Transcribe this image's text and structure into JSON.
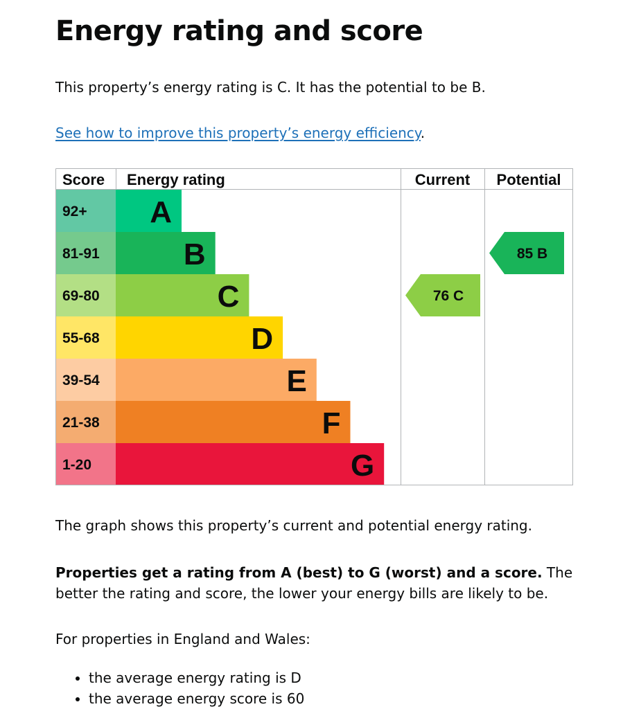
{
  "page": {
    "title": "Energy rating and score",
    "intro": "This property’s energy rating is C. It has the potential to be B.",
    "link_text": "See how to improve this property’s energy efficiency",
    "link_suffix": ".",
    "graph_description": "The graph shows this property’s current and potential energy rating.",
    "rating_info_bold": "Properties get a rating from A (best) to G (worst) and a score.",
    "rating_info_rest": " The better the rating and score, the lower your energy bills are likely to be.",
    "region_text": "For properties in England and Wales:",
    "averages": [
      "the average energy rating is D",
      "the average energy score is 60"
    ]
  },
  "chart_data": {
    "type": "bar",
    "headers": {
      "score": "Score",
      "rating": "Energy rating",
      "current": "Current",
      "potential": "Potential"
    },
    "bands": [
      {
        "letter": "A",
        "range": "92+",
        "color": "#00c781",
        "range_color": "#62c8a4"
      },
      {
        "letter": "B",
        "range": "81-91",
        "color": "#19b459",
        "range_color": "#75ca8d"
      },
      {
        "letter": "C",
        "range": "69-80",
        "color": "#8dce46",
        "range_color": "#b3df85"
      },
      {
        "letter": "D",
        "range": "55-68",
        "color": "#ffd500",
        "range_color": "#ffe666"
      },
      {
        "letter": "E",
        "range": "39-54",
        "color": "#fcaa65",
        "range_color": "#fdcca3"
      },
      {
        "letter": "F",
        "range": "21-38",
        "color": "#ef8023",
        "range_color": "#f4ac71"
      },
      {
        "letter": "G",
        "range": "1-20",
        "color": "#e9153b",
        "range_color": "#f27489"
      }
    ],
    "current": {
      "score": 76,
      "letter": "C",
      "label": "76 C",
      "color": "#8dce46"
    },
    "potential": {
      "score": 85,
      "letter": "B",
      "label": "85 B",
      "color": "#19b459"
    }
  }
}
